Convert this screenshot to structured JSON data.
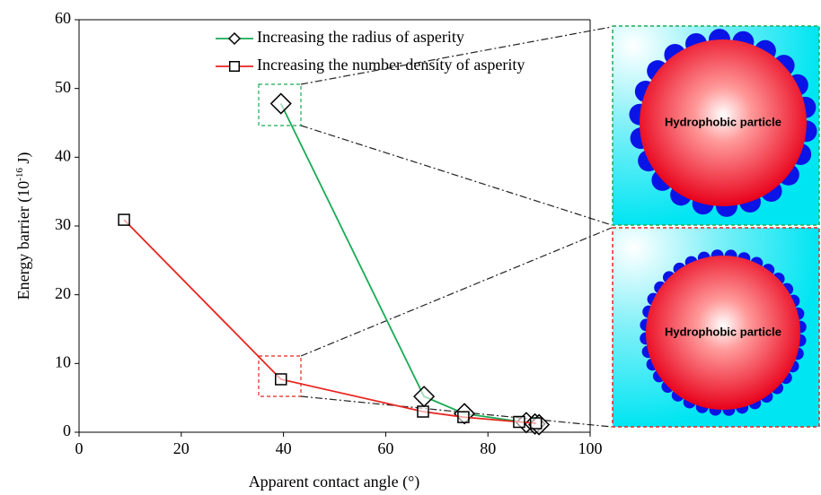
{
  "chart_data": {
    "type": "line",
    "xlabel": "Apparent contact angle (°)",
    "ylabel": {
      "text": "Energy barrier (10",
      "sup": "-16",
      "after": " J)"
    },
    "xlim": [
      0,
      100
    ],
    "xticks": [
      0,
      20,
      40,
      60,
      80,
      100
    ],
    "ylim": [
      0,
      60
    ],
    "yticks": [
      0,
      10,
      20,
      30,
      40,
      50,
      60
    ],
    "series": [
      {
        "name": "Increasing the radius of asperity",
        "color": "#1aab55",
        "marker": "diamond",
        "x": [
          39.5,
          67.5,
          75.4,
          87.5,
          89.2,
          90
        ],
        "values": [
          47.8,
          5.2,
          2.7,
          1.4,
          1.2,
          1.1
        ]
      },
      {
        "name": "Increasing the number density of asperity",
        "color": "#e8251f",
        "marker": "square",
        "x": [
          8.8,
          39.5,
          67.3,
          75.2,
          86.1,
          89.4
        ],
        "values": [
          30.9,
          7.7,
          3.0,
          2.2,
          1.5,
          1.3
        ]
      }
    ],
    "insets": [
      {
        "label": "Hydrophobic particle"
      },
      {
        "label": "Hydrophobic particle"
      }
    ]
  }
}
